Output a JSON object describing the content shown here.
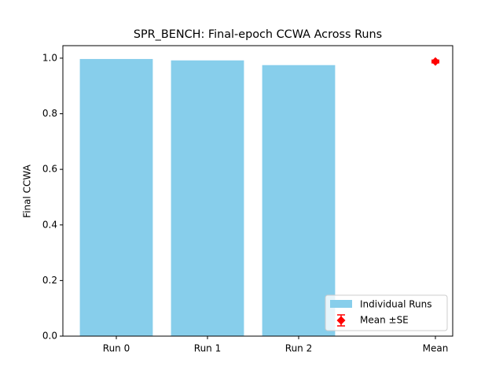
{
  "chart_data": {
    "type": "bar",
    "title": "SPR_BENCH: Final-epoch CCWA Across Runs",
    "y_label": "Final CCWA",
    "categories": [
      "Run 0",
      "Run 1",
      "Run 2",
      "Mean"
    ],
    "series": [
      {
        "name": "Individual Runs",
        "color": "#87ceeb",
        "values": [
          0.997,
          0.992,
          0.975,
          null
        ]
      },
      {
        "name": "Mean ±SE",
        "color": "#ff0000",
        "values": [
          null,
          null,
          null,
          0.988
        ],
        "errors": [
          null,
          null,
          null,
          0.005
        ]
      }
    ],
    "ylim": [
      0,
      1.045
    ],
    "yticks": [
      {
        "value": 0,
        "label": "0.0"
      },
      0.2,
      0.4,
      0.6,
      0.8,
      {
        "value": 1,
        "label": "1.0"
      }
    ],
    "legend": "lower right"
  }
}
